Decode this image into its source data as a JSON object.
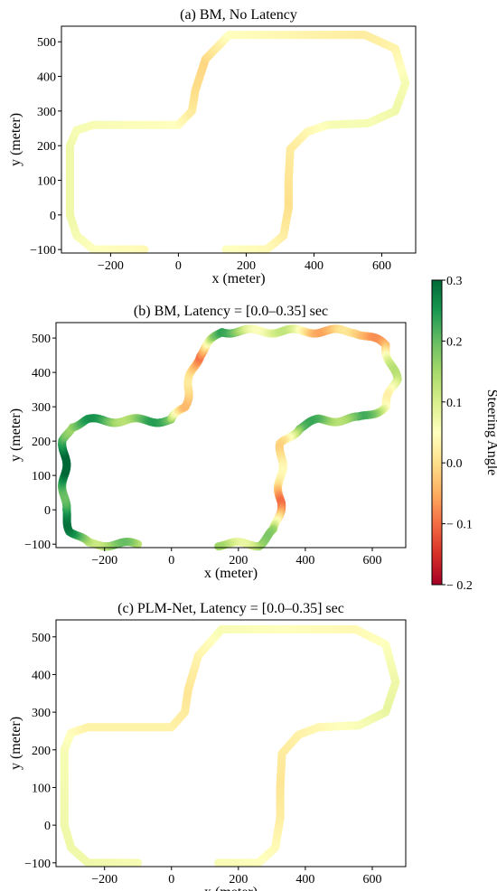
{
  "figure": {
    "colorbar": {
      "label": "Steering Angle",
      "vmin": -0.2,
      "vmax": 0.3,
      "ticks": [
        0.3,
        0.2,
        0.1,
        0.0,
        -0.1,
        -0.2
      ],
      "tick_labels": [
        "0.3",
        "0.2",
        "0.1",
        "0.0",
        "− 0.1",
        "− 0.2"
      ],
      "colormap": [
        "#a50026",
        "#d73027",
        "#f46d43",
        "#fdae61",
        "#fee08b",
        "#ffffbf",
        "#d9ef8b",
        "#a6d96a",
        "#66bd63",
        "#1a9850",
        "#006837"
      ]
    }
  },
  "chart_data": [
    {
      "type": "line",
      "title": "(a)  BM, No Latency",
      "xlabel": "x (meter)",
      "ylabel": "y (meter)",
      "xlim": [
        -345,
        700
      ],
      "ylim": [
        -110,
        545
      ],
      "xticks": [
        -200,
        0,
        200,
        400,
        600
      ],
      "xtick_labels": [
        "−200",
        "0",
        "200",
        "400",
        "600"
      ],
      "yticks": [
        -100,
        0,
        100,
        200,
        300,
        400,
        500
      ],
      "ytick_labels": [
        "−100",
        "0",
        "100",
        "200",
        "300",
        "400",
        "500"
      ],
      "grid": false,
      "wobble": 0,
      "path": [
        [
          -100,
          -100
        ],
        [
          -250,
          -100
        ],
        [
          -300,
          -60
        ],
        [
          -320,
          0
        ],
        [
          -320,
          200
        ],
        [
          -300,
          245
        ],
        [
          -250,
          260
        ],
        [
          0,
          260
        ],
        [
          40,
          300
        ],
        [
          50,
          360
        ],
        [
          80,
          450
        ],
        [
          130,
          500
        ],
        [
          150,
          520
        ],
        [
          550,
          520
        ],
        [
          640,
          480
        ],
        [
          670,
          380
        ],
        [
          640,
          300
        ],
        [
          560,
          265
        ],
        [
          440,
          260
        ],
        [
          380,
          240
        ],
        [
          330,
          190
        ],
        [
          325,
          100
        ],
        [
          325,
          20
        ],
        [
          310,
          -60
        ],
        [
          260,
          -100
        ],
        [
          140,
          -100
        ]
      ],
      "steering": [
        0.04,
        0.05,
        0.06,
        0.07,
        0.07,
        0.06,
        0.06,
        0.05,
        0.02,
        0.0,
        -0.01,
        0.03,
        0.05,
        0.02,
        0.03,
        0.06,
        0.07,
        0.06,
        0.06,
        0.04,
        0.02,
        0.01,
        0.0,
        0.02,
        0.04,
        0.05
      ]
    },
    {
      "type": "line",
      "title": "(b)  BM, Latency = [0.0–0.35] sec",
      "xlabel": "x (meter)",
      "ylabel": "y (meter)",
      "xlim": [
        -345,
        700
      ],
      "ylim": [
        -110,
        545
      ],
      "xticks": [
        -200,
        0,
        200,
        400,
        600
      ],
      "xtick_labels": [
        "−200",
        "0",
        "200",
        "400",
        "600"
      ],
      "yticks": [
        -100,
        0,
        100,
        200,
        300,
        400,
        500
      ],
      "ytick_labels": [
        "−100",
        "0",
        "100",
        "200",
        "300",
        "400",
        "500"
      ],
      "grid": false,
      "wobble": 1,
      "path": [
        [
          -100,
          -100
        ],
        [
          -250,
          -100
        ],
        [
          -300,
          -60
        ],
        [
          -320,
          0
        ],
        [
          -320,
          200
        ],
        [
          -300,
          245
        ],
        [
          -250,
          260
        ],
        [
          0,
          260
        ],
        [
          40,
          300
        ],
        [
          50,
          360
        ],
        [
          80,
          450
        ],
        [
          130,
          500
        ],
        [
          150,
          520
        ],
        [
          550,
          520
        ],
        [
          640,
          480
        ],
        [
          670,
          380
        ],
        [
          640,
          300
        ],
        [
          560,
          265
        ],
        [
          440,
          260
        ],
        [
          380,
          240
        ],
        [
          330,
          190
        ],
        [
          325,
          100
        ],
        [
          325,
          20
        ],
        [
          310,
          -60
        ],
        [
          260,
          -100
        ],
        [
          140,
          -100
        ]
      ],
      "steering": [
        0.12,
        0.18,
        0.22,
        0.25,
        0.27,
        0.2,
        0.2,
        0.18,
        0.02,
        -0.04,
        -0.05,
        0.15,
        0.18,
        -0.06,
        0.0,
        0.1,
        0.08,
        0.18,
        0.2,
        0.15,
        0.05,
        -0.02,
        -0.05,
        0.1,
        0.15,
        0.12
      ]
    },
    {
      "type": "line",
      "title": "(c)  PLM-Net, Latency = [0.0–0.35] sec",
      "xlabel": "x (meter)",
      "ylabel": "y (meter)",
      "xlim": [
        -345,
        700
      ],
      "ylim": [
        -110,
        545
      ],
      "xticks": [
        -200,
        0,
        200,
        400,
        600
      ],
      "xtick_labels": [
        "−200",
        "0",
        "200",
        "400",
        "600"
      ],
      "yticks": [
        -100,
        0,
        100,
        200,
        300,
        400,
        500
      ],
      "ytick_labels": [
        "−100",
        "0",
        "100",
        "200",
        "300",
        "400",
        "500"
      ],
      "grid": false,
      "wobble": 0,
      "path": [
        [
          -100,
          -100
        ],
        [
          -250,
          -100
        ],
        [
          -300,
          -60
        ],
        [
          -320,
          0
        ],
        [
          -320,
          200
        ],
        [
          -300,
          245
        ],
        [
          -250,
          260
        ],
        [
          0,
          260
        ],
        [
          40,
          300
        ],
        [
          50,
          360
        ],
        [
          80,
          450
        ],
        [
          130,
          500
        ],
        [
          150,
          520
        ],
        [
          550,
          520
        ],
        [
          640,
          480
        ],
        [
          670,
          380
        ],
        [
          640,
          300
        ],
        [
          560,
          265
        ],
        [
          440,
          260
        ],
        [
          380,
          240
        ],
        [
          330,
          190
        ],
        [
          325,
          100
        ],
        [
          325,
          20
        ],
        [
          310,
          -60
        ],
        [
          260,
          -100
        ],
        [
          140,
          -100
        ]
      ],
      "steering": [
        0.06,
        0.07,
        0.07,
        0.07,
        0.06,
        0.05,
        0.03,
        0.03,
        0.02,
        0.01,
        0.03,
        0.05,
        0.06,
        0.04,
        0.05,
        0.07,
        0.08,
        0.06,
        0.04,
        0.03,
        0.02,
        0.01,
        0.02,
        0.04,
        0.05,
        0.06
      ]
    }
  ]
}
